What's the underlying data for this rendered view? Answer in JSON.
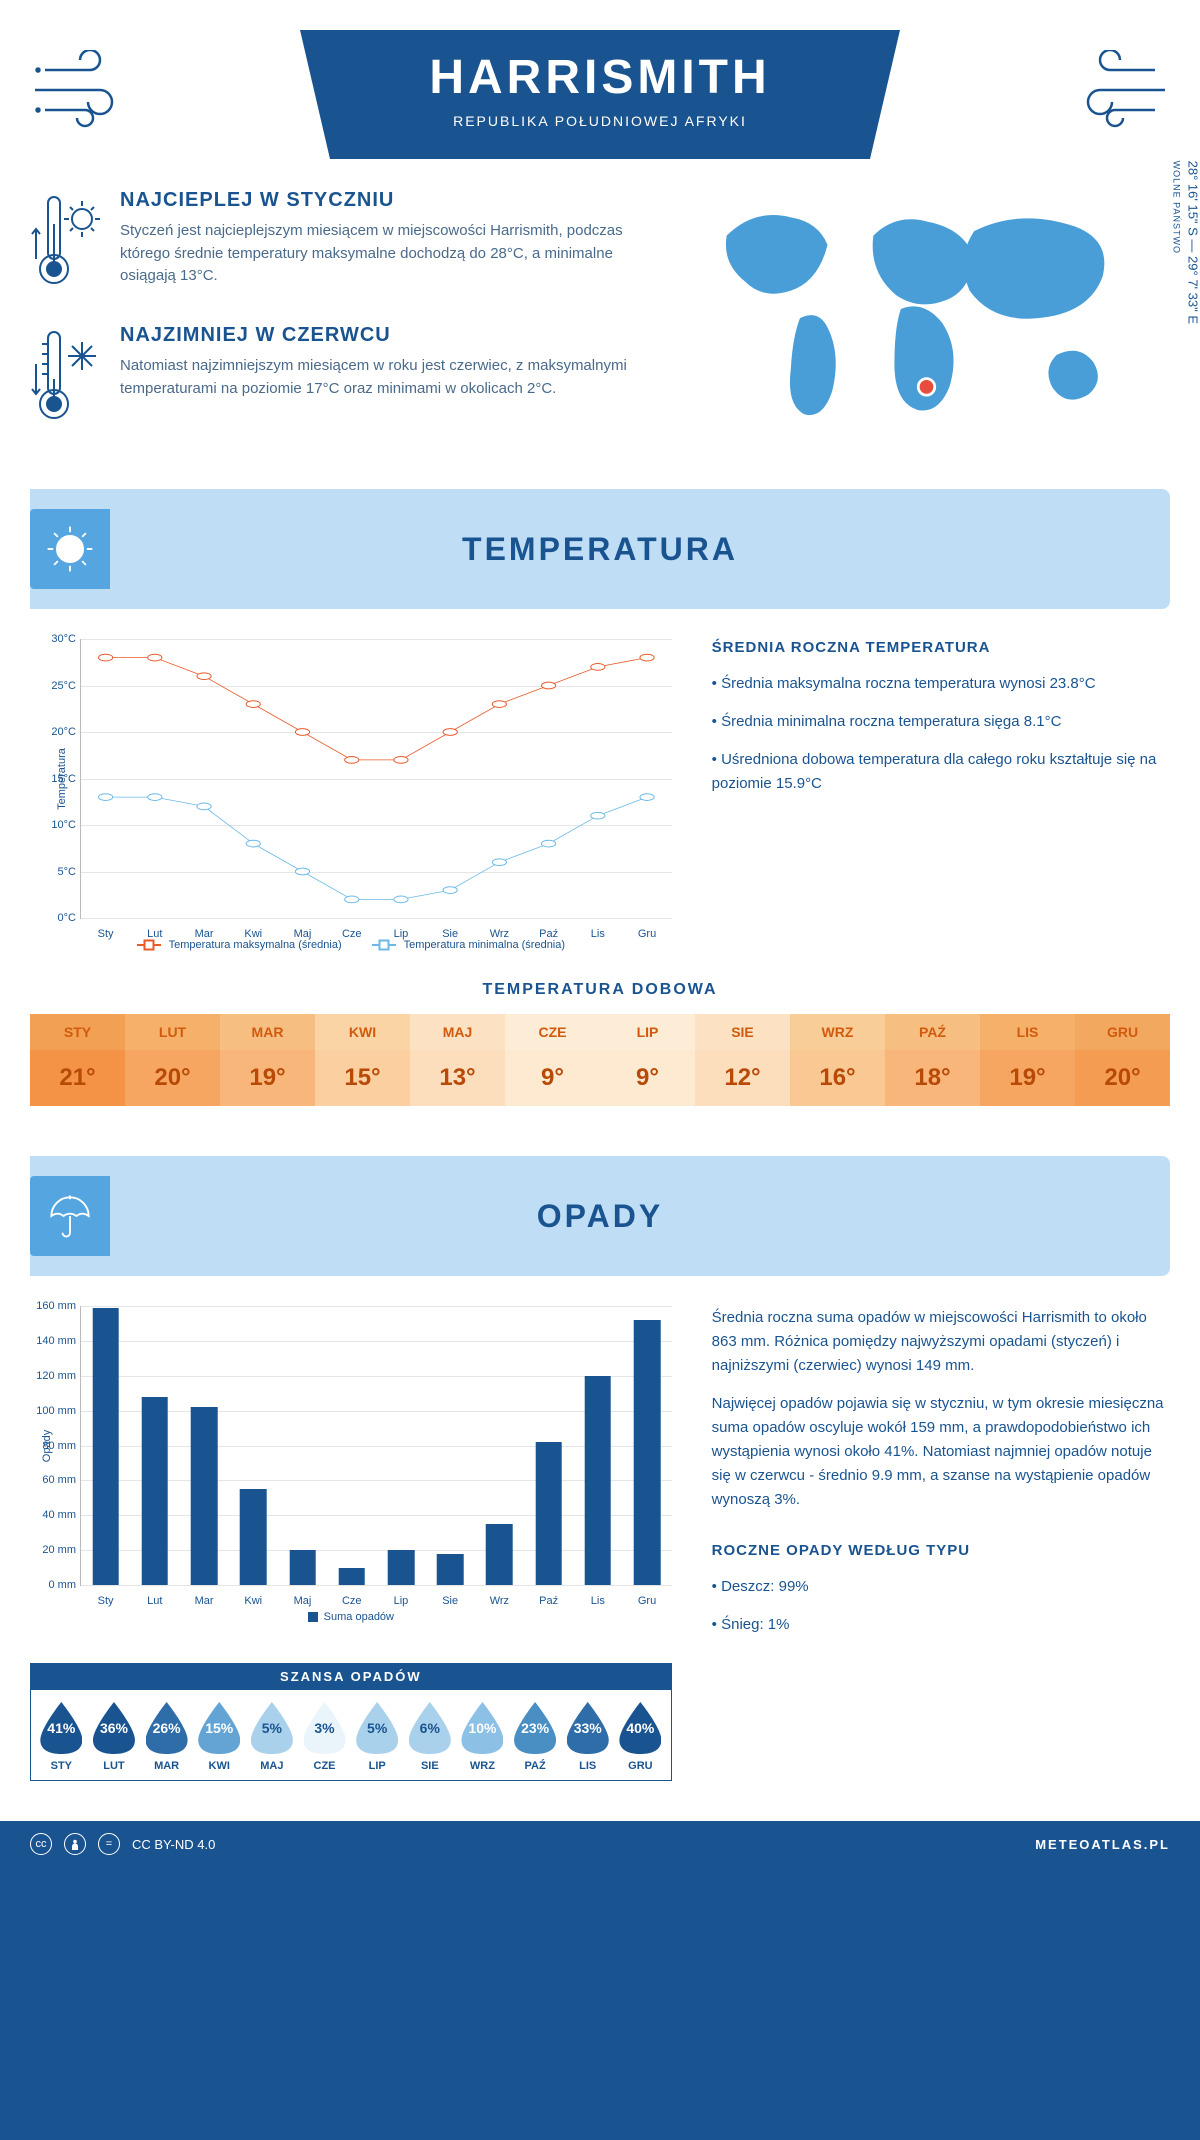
{
  "header": {
    "title": "HARRISMITH",
    "subtitle": "REPUBLIKA POŁUDNIOWEJ AFRYKI"
  },
  "coords": {
    "line": "28° 16' 15\" S — 29° 7' 33\" E",
    "region": "WOLNE PAŃSTWO"
  },
  "summary": {
    "hot": {
      "title": "NAJCIEPLEJ W STYCZNIU",
      "text": "Styczeń jest najcieplejszym miesiącem w miejscowości Harrismith, podczas którego średnie temperatury maksymalne dochodzą do 28°C, a minimalne osiągają 13°C."
    },
    "cold": {
      "title": "NAJZIMNIEJ W CZERWCU",
      "text": "Natomiast najzimniejszym miesiącem w roku jest czerwiec, z maksymalnymi temperaturami na poziomie 17°C oraz minimami w okolicach 2°C."
    }
  },
  "tempSection": {
    "heading": "TEMPERATURA",
    "chart": {
      "type": "line",
      "y_label": "Temperatura",
      "ylim": [
        0,
        30
      ],
      "y_ticks": [
        "0°C",
        "5°C",
        "10°C",
        "15°C",
        "20°C",
        "25°C",
        "30°C"
      ],
      "y_tick_vals": [
        0,
        5,
        10,
        15,
        20,
        25,
        30
      ],
      "x_labels": [
        "Sty",
        "Lut",
        "Mar",
        "Kwi",
        "Maj",
        "Cze",
        "Lip",
        "Sie",
        "Wrz",
        "Paź",
        "Lis",
        "Gru"
      ],
      "series": {
        "max": {
          "label": "Temperatura maksymalna (średnia)",
          "color": "#e85a2a",
          "values": [
            28,
            28,
            26,
            23,
            20,
            17,
            17,
            20,
            23,
            25,
            27,
            28
          ]
        },
        "min": {
          "label": "Temperatura minimalna (średnia)",
          "color": "#6cb9e8",
          "values": [
            13,
            13,
            12,
            8,
            5,
            2,
            2,
            3,
            6,
            8,
            11,
            13
          ]
        }
      },
      "background_color": "#ffffff",
      "grid_color": "#e5e5e5"
    },
    "info_title": "ŚREDNIA ROCZNA TEMPERATURA",
    "info_bullets": [
      "• Średnia maksymalna roczna temperatura wynosi 23.8°C",
      "• Średnia minimalna roczna temperatura sięga 8.1°C",
      "• Uśredniona dobowa temperatura dla całego roku kształtuje się na poziomie 15.9°C"
    ],
    "daily_heading": "TEMPERATURA DOBOWA",
    "daily_table": {
      "months": [
        "STY",
        "LUT",
        "MAR",
        "KWI",
        "MAJ",
        "CZE",
        "LIP",
        "SIE",
        "WRZ",
        "PAŹ",
        "LIS",
        "GRU"
      ],
      "values": [
        "21°",
        "20°",
        "19°",
        "15°",
        "13°",
        "9°",
        "9°",
        "12°",
        "16°",
        "18°",
        "19°",
        "20°"
      ],
      "head_colors": [
        "#f2a154",
        "#f5b06a",
        "#f7be81",
        "#fad4a5",
        "#fce2c2",
        "#fdecd6",
        "#fdecd6",
        "#fce2c2",
        "#f9cd97",
        "#f7be81",
        "#f5b06a",
        "#f3a860"
      ],
      "val_colors": [
        "#f49245",
        "#f7a662",
        "#f9b67a",
        "#fbcfa0",
        "#fcdebd",
        "#fee9d1",
        "#fee9d1",
        "#fcdebd",
        "#fac892",
        "#f9b67a",
        "#f7a662",
        "#f59c53"
      ],
      "head_text_color": "#d15a0e",
      "val_text_color": "#b84a08"
    }
  },
  "precipSection": {
    "heading": "OPADY",
    "chart": {
      "type": "bar",
      "y_label": "Opady",
      "ylim": [
        0,
        160
      ],
      "y_ticks": [
        "0 mm",
        "20 mm",
        "40 mm",
        "60 mm",
        "80 mm",
        "100 mm",
        "120 mm",
        "140 mm",
        "160 mm"
      ],
      "y_tick_vals": [
        0,
        20,
        40,
        60,
        80,
        100,
        120,
        140,
        160
      ],
      "x_labels": [
        "Sty",
        "Lut",
        "Mar",
        "Kwi",
        "Maj",
        "Cze",
        "Lip",
        "Sie",
        "Wrz",
        "Paź",
        "Lis",
        "Gru"
      ],
      "values": [
        159,
        108,
        102,
        55,
        20,
        10,
        20,
        18,
        35,
        82,
        120,
        152
      ],
      "bar_color": "#1a5490",
      "legend_label": "Suma opadów"
    },
    "info_paras": [
      "Średnia roczna suma opadów w miejscowości Harrismith to około 863 mm. Różnica pomiędzy najwyższymi opadami (styczeń) i najniższymi (czerwiec) wynosi 149 mm.",
      "Najwięcej opadów pojawia się w styczniu, w tym okresie miesięczna suma opadów oscyluje wokół 159 mm, a prawdopodobieństwo ich wystąpienia wynosi około 41%. Natomiast najmniej opadów notuje się w czerwcu - średnio 9.9 mm, a szanse na wystąpienie opadów wynoszą 3%."
    ],
    "chance": {
      "heading": "SZANSA OPADÓW",
      "months": [
        "STY",
        "LUT",
        "MAR",
        "KWI",
        "MAJ",
        "CZE",
        "LIP",
        "SIE",
        "WRZ",
        "PAŹ",
        "LIS",
        "GRU"
      ],
      "pct": [
        "41%",
        "36%",
        "26%",
        "15%",
        "5%",
        "3%",
        "5%",
        "6%",
        "10%",
        "23%",
        "33%",
        "40%"
      ],
      "drop_bg": [
        "#1a5490",
        "#1a5490",
        "#2f6da8",
        "#64a4d4",
        "#a9d1ec",
        "#eaf4fb",
        "#a9d1ec",
        "#a9d1ec",
        "#8cc0e4",
        "#4a8fc3",
        "#2f6da8",
        "#1a5490"
      ],
      "drop_text": [
        "#ffffff",
        "#ffffff",
        "#ffffff",
        "#ffffff",
        "#1a5490",
        "#1a5490",
        "#1a5490",
        "#1a5490",
        "#ffffff",
        "#ffffff",
        "#ffffff",
        "#ffffff"
      ]
    },
    "types_heading": "ROCZNE OPADY WEDŁUG TYPU",
    "types": [
      "• Deszcz: 99%",
      "• Śnieg: 1%"
    ]
  },
  "footer": {
    "license": "CC BY-ND 4.0",
    "brand": "METEOATLAS.PL"
  }
}
